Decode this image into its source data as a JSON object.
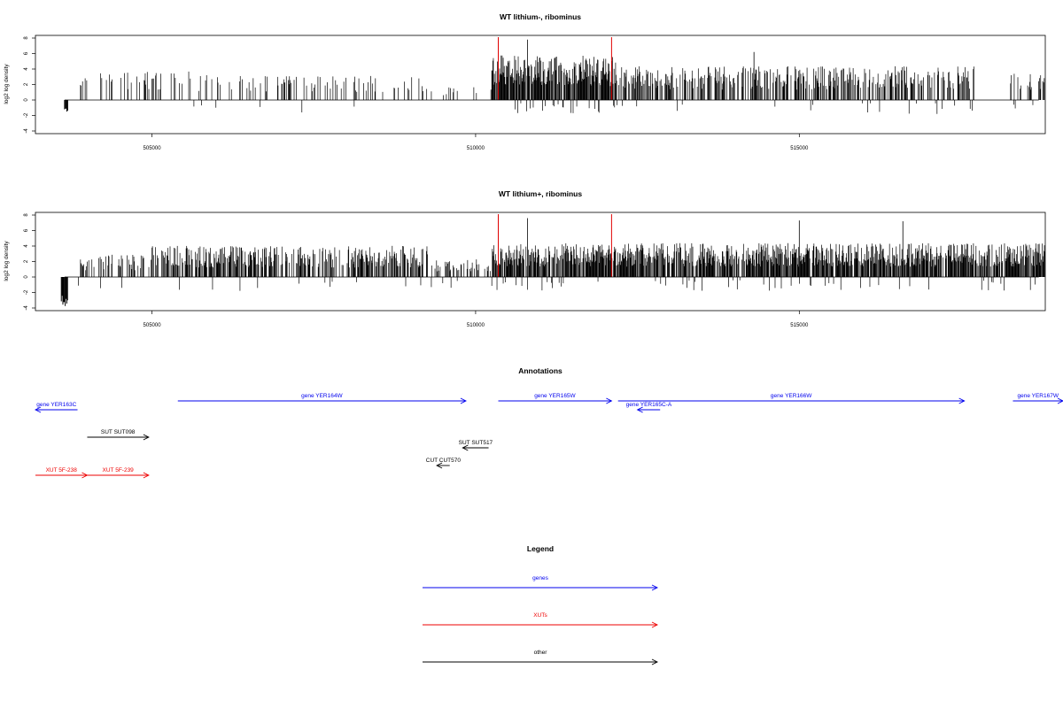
{
  "chart_data": [
    {
      "type": "bar",
      "title": "WT lithium-, ribominus",
      "ylabel": "log2 log density",
      "xlim": [
        503200,
        518800
      ],
      "ylim": [
        -4,
        8
      ],
      "x_ticks": [
        505000,
        510000,
        515000
      ],
      "x_tick_labels": [
        "505000",
        "510000",
        "515000"
      ],
      "y_ticks": [
        -4,
        -2,
        0,
        2,
        4,
        6,
        8
      ],
      "y_tick_labels": [
        "-4",
        "-2",
        "0",
        "2",
        "4",
        "6",
        "8"
      ],
      "markers": [
        510350,
        512100
      ],
      "marker_color": "#e00000",
      "density_profile": [
        {
          "from": 503650,
          "to": 503700,
          "level": -1.7
        },
        {
          "from": 503800,
          "to": 505700,
          "level": 3.2,
          "density": 0.18
        },
        {
          "from": 505700,
          "to": 509300,
          "level": 2.8,
          "density": 0.16
        },
        {
          "from": 509300,
          "to": 510250,
          "level": 1.5,
          "density": 0.03
        },
        {
          "from": 510250,
          "to": 512200,
          "level": 5.0,
          "density": 0.95
        },
        {
          "from": 512200,
          "to": 517700,
          "level": 3.8,
          "density": 0.5
        },
        {
          "from": 517700,
          "to": 518200,
          "level": 0.0,
          "density": 0.0
        },
        {
          "from": 518200,
          "to": 518800,
          "level": 3.0,
          "density": 0.25
        }
      ],
      "peaks": [
        {
          "x": 510800,
          "y": 7.8
        },
        {
          "x": 514300,
          "y": 6.2
        }
      ]
    },
    {
      "type": "bar",
      "title": "WT lithium+, ribominus",
      "ylabel": "log2 log density",
      "xlim": [
        503200,
        518800
      ],
      "ylim": [
        -4,
        8
      ],
      "x_ticks": [
        505000,
        510000,
        515000
      ],
      "x_tick_labels": [
        "505000",
        "510000",
        "515000"
      ],
      "y_ticks": [
        -4,
        -2,
        0,
        2,
        4,
        6,
        8
      ],
      "y_tick_labels": [
        "-4",
        "-2",
        "0",
        "2",
        "4",
        "6",
        "8"
      ],
      "markers": [
        510350,
        512100
      ],
      "marker_color": "#e00000",
      "density_profile": [
        {
          "from": 503600,
          "to": 503700,
          "level": -3.9
        },
        {
          "from": 503800,
          "to": 505000,
          "level": 2.5,
          "density": 0.25
        },
        {
          "from": 505000,
          "to": 509300,
          "level": 3.5,
          "density": 0.55
        },
        {
          "from": 509300,
          "to": 510250,
          "level": 2.0,
          "density": 0.35
        },
        {
          "from": 510250,
          "to": 518800,
          "level": 3.8,
          "density": 0.85
        }
      ],
      "peaks": [
        {
          "x": 510800,
          "y": 7.6
        },
        {
          "x": 515000,
          "y": 7.3
        },
        {
          "x": 516600,
          "y": 7.2
        }
      ]
    }
  ],
  "annotations": {
    "title": "Annotations",
    "items": [
      {
        "label": "gene YER163C",
        "kind": "gene",
        "from": 503850,
        "to": 503200,
        "row": 1
      },
      {
        "label": "gene YER164W",
        "kind": "gene",
        "from": 505400,
        "to": 509850,
        "row": 0
      },
      {
        "label": "gene YER165W",
        "kind": "gene",
        "from": 510350,
        "to": 512100,
        "row": 0
      },
      {
        "label": "gene YER165C-A",
        "kind": "gene",
        "from": 512850,
        "to": 512500,
        "row": 1
      },
      {
        "label": "gene YER166W",
        "kind": "gene",
        "from": 512200,
        "to": 517550,
        "row": 0
      },
      {
        "label": "gene YER167W",
        "kind": "gene",
        "from": 518300,
        "to": 519500,
        "row": 0
      },
      {
        "label": "SUT SUT098",
        "kind": "other",
        "from": 504000,
        "to": 504950,
        "row": 2
      },
      {
        "label": "SUT SUT517",
        "kind": "other",
        "from": 510200,
        "to": 509800,
        "row": 3
      },
      {
        "label": "CUT CUT570",
        "kind": "other",
        "from": 509600,
        "to": 509400,
        "row": 4
      },
      {
        "label": "XUT 5F-238",
        "kind": "xut",
        "from": 503200,
        "to": 504000,
        "row": 5
      },
      {
        "label": "XUT 5F-239",
        "kind": "xut",
        "from": 504000,
        "to": 504950,
        "row": 5
      }
    ]
  },
  "legend": {
    "title": "Legend",
    "items": [
      {
        "label": "genes",
        "color": "#0000ee"
      },
      {
        "label": "XUTs",
        "color": "#ee0000"
      },
      {
        "label": "other",
        "color": "#000000"
      }
    ]
  },
  "colors": {
    "gene": "#0000ee",
    "xut": "#ee0000",
    "other": "#000000",
    "bars": "#000000"
  }
}
